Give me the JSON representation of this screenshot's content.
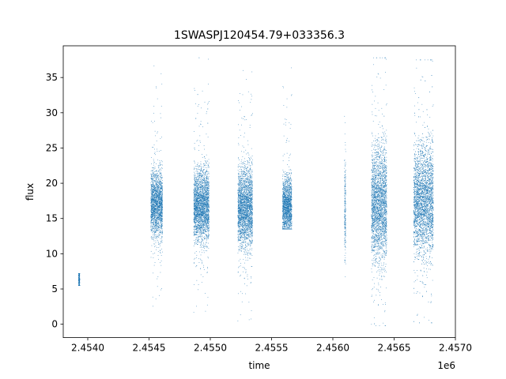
{
  "chart_data": {
    "type": "scatter",
    "title": "1SWASPJ120454.79+033356.3",
    "xlabel": "time",
    "ylabel": "flux",
    "x_offset_label": "1e6",
    "xlim": [
      2453800,
      2457000
    ],
    "ylim": [
      -1.9,
      39.5
    ],
    "x_ticks": [
      2454000,
      2454500,
      2455000,
      2455500,
      2456000,
      2456500,
      2457000
    ],
    "x_tick_labels": [
      "2.4540",
      "2.4545",
      "2.4550",
      "2.4555",
      "2.4560",
      "2.4565",
      "2.4570"
    ],
    "y_ticks": [
      0,
      5,
      10,
      15,
      20,
      25,
      30,
      35
    ],
    "y_tick_labels": [
      "0",
      "5",
      "10",
      "15",
      "20",
      "25",
      "30",
      "35"
    ],
    "grid": false,
    "marker_color": "#1f77b4",
    "observing_seasons": [
      {
        "t_start": 2453925,
        "t_end": 2453935,
        "flux_center": 6.3,
        "flux_spread": 0.8,
        "flux_min": 5.5,
        "flux_max": 7.2
      },
      {
        "t_start": 2454515,
        "t_end": 2454610,
        "flux_center": 17.0,
        "flux_spread": 2.3,
        "flux_min": 1.5,
        "flux_max": 37.8
      },
      {
        "t_start": 2454865,
        "t_end": 2454990,
        "flux_center": 16.8,
        "flux_spread": 2.5,
        "flux_min": 1.5,
        "flux_max": 37.8
      },
      {
        "t_start": 2455225,
        "t_end": 2455345,
        "flux_center": 16.5,
        "flux_spread": 2.8,
        "flux_min": 0.3,
        "flux_max": 36.0
      },
      {
        "t_start": 2455590,
        "t_end": 2455665,
        "flux_center": 16.8,
        "flux_spread": 2.0,
        "flux_min": 13.5,
        "flux_max": 36.5
      },
      {
        "t_start": 2456095,
        "t_end": 2456105,
        "flux_center": 16.0,
        "flux_spread": 3.5,
        "flux_min": 4.5,
        "flux_max": 29.5
      },
      {
        "t_start": 2456315,
        "t_end": 2456440,
        "flux_center": 17.0,
        "flux_spread": 4.0,
        "flux_min": -0.2,
        "flux_max": 37.8
      },
      {
        "t_start": 2456660,
        "t_end": 2456820,
        "flux_center": 17.5,
        "flux_spread": 3.8,
        "flux_min": 0.2,
        "flux_max": 37.5
      }
    ]
  }
}
